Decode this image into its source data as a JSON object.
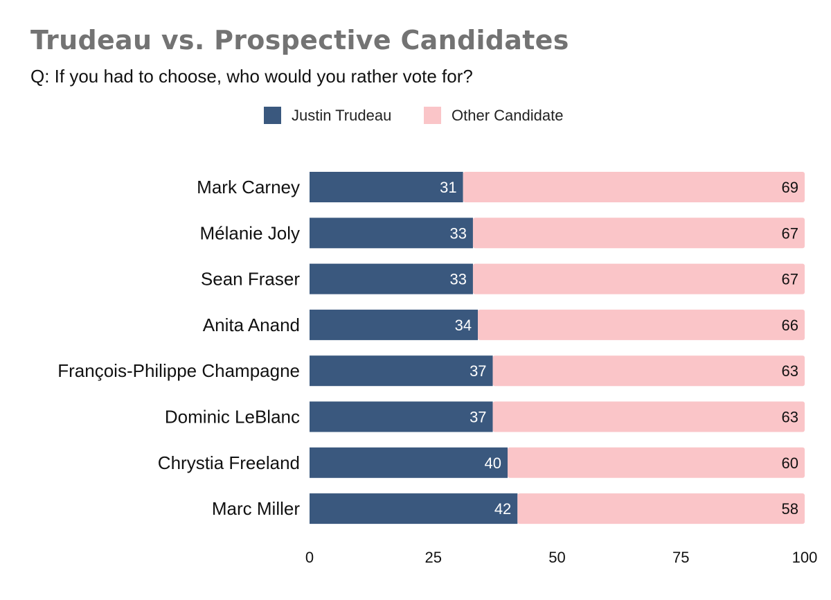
{
  "chart_data": {
    "type": "bar",
    "orientation": "horizontal",
    "stacked": true,
    "title": "Trudeau vs. Prospective Candidates",
    "subtitle": "Q: If you had to choose, who would you rather vote for?",
    "xlabel": "",
    "ylabel": "",
    "xlim": [
      0,
      100
    ],
    "x_ticks": [
      "0",
      "25",
      "50",
      "75",
      "100"
    ],
    "grid": false,
    "legend_position": "top",
    "categories": [
      "Mark Carney",
      "Mélanie Joly",
      "Sean Fraser",
      "Anita Anand",
      "François-Philippe Champagne",
      "Dominic LeBlanc",
      "Chrystia Freeland",
      "Marc Miller"
    ],
    "series": [
      {
        "name": "Justin Trudeau",
        "color": "#3a587e",
        "label_color": "#ffffff",
        "values": [
          31,
          33,
          33,
          34,
          37,
          37,
          40,
          42
        ]
      },
      {
        "name": "Other Candidate",
        "color": "#fac5c8",
        "label_color": "#111111",
        "values": [
          69,
          67,
          67,
          66,
          63,
          63,
          60,
          58
        ]
      }
    ]
  }
}
